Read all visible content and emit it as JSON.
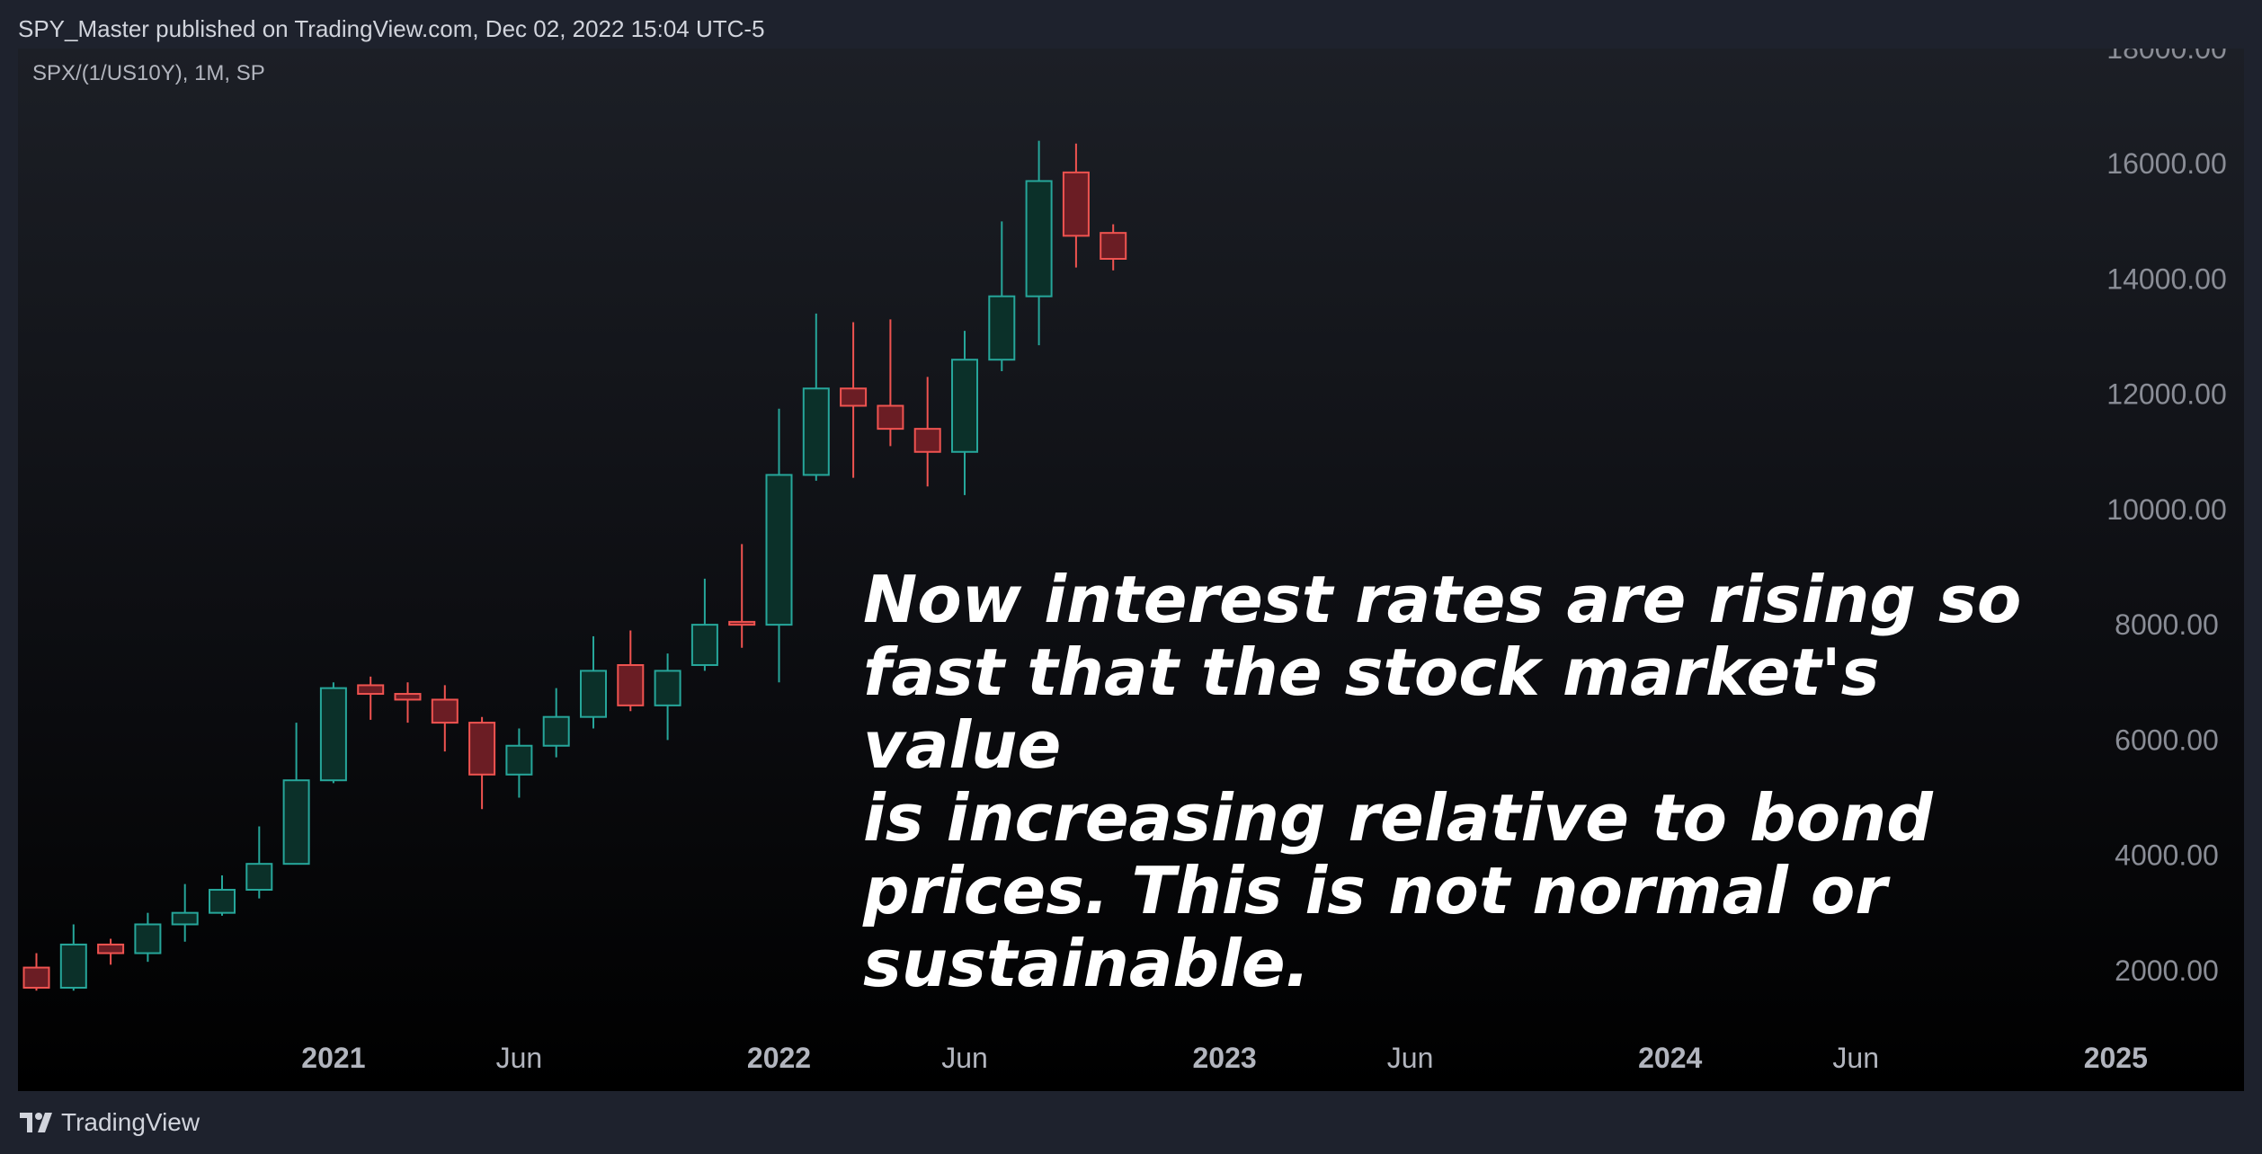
{
  "header": {
    "text": "SPY_Master published on TradingView.com, Dec 02, 2022 15:04 UTC-5"
  },
  "legend": {
    "text": "SPX/(1/US10Y), 1M, SP"
  },
  "annotation": {
    "text": "Now interest rates are rising so\nfast that the stock market's value\nis increasing relative to bond\nprices. This is not normal or\nsustainable."
  },
  "footer": {
    "brand": "TradingView",
    "logo_icon": "tradingview-logo-icon"
  },
  "colors": {
    "up": "#26a69a",
    "down": "#ef5350",
    "up_fill": "#0b3029",
    "down_fill": "#6b1d24",
    "background_top": "#1c1f26",
    "background_bottom": "#000000",
    "frame": "#1e222d"
  },
  "chart_data": {
    "type": "candlestick",
    "symbol": "SPX/(1/US10Y)",
    "interval": "1M",
    "ylim": [
      0,
      18000
    ],
    "y_ticks": [
      "18000.00",
      "16000.00",
      "14000.00",
      "12000.00",
      "10000.00",
      "8000.00",
      "6000.00",
      "4000.00",
      "2000.00"
    ],
    "x_ticks": [
      {
        "label": "2021",
        "date": "2021-01",
        "major": true
      },
      {
        "label": "Jun",
        "date": "2021-06",
        "major": false
      },
      {
        "label": "2022",
        "date": "2022-01",
        "major": true
      },
      {
        "label": "Jun",
        "date": "2022-06",
        "major": false
      },
      {
        "label": "2023",
        "date": "2023-01",
        "major": true
      },
      {
        "label": "Jun",
        "date": "2023-06",
        "major": false
      },
      {
        "label": "2024",
        "date": "2024-01",
        "major": true
      },
      {
        "label": "Jun",
        "date": "2024-06",
        "major": false
      },
      {
        "label": "2025",
        "date": "2025-01",
        "major": true
      }
    ],
    "grid": false,
    "candles": [
      {
        "date": "2020-05",
        "open": 2050,
        "high": 2300,
        "low": 1650,
        "close": 1700
      },
      {
        "date": "2020-06",
        "open": 1700,
        "high": 2800,
        "low": 1650,
        "close": 2450
      },
      {
        "date": "2020-07",
        "open": 2450,
        "high": 2550,
        "low": 2100,
        "close": 2300
      },
      {
        "date": "2020-08",
        "open": 2300,
        "high": 3000,
        "low": 2150,
        "close": 2800
      },
      {
        "date": "2020-09",
        "open": 2800,
        "high": 3500,
        "low": 2500,
        "close": 3000
      },
      {
        "date": "2020-10",
        "open": 3000,
        "high": 3650,
        "low": 2950,
        "close": 3400
      },
      {
        "date": "2020-11",
        "open": 3400,
        "high": 4500,
        "low": 3250,
        "close": 3850
      },
      {
        "date": "2020-12",
        "open": 3850,
        "high": 6300,
        "low": 3900,
        "close": 5300
      },
      {
        "date": "2021-01",
        "open": 5300,
        "high": 7000,
        "low": 5250,
        "close": 6900
      },
      {
        "date": "2021-02",
        "open": 6950,
        "high": 7100,
        "low": 6350,
        "close": 6800
      },
      {
        "date": "2021-03",
        "open": 6800,
        "high": 7000,
        "low": 6300,
        "close": 6700
      },
      {
        "date": "2021-04",
        "open": 6700,
        "high": 6950,
        "low": 5800,
        "close": 6300
      },
      {
        "date": "2021-05",
        "open": 6300,
        "high": 6400,
        "low": 4800,
        "close": 5400
      },
      {
        "date": "2021-06",
        "open": 5400,
        "high": 6200,
        "low": 5000,
        "close": 5900
      },
      {
        "date": "2021-07",
        "open": 5900,
        "high": 6900,
        "low": 5700,
        "close": 6400
      },
      {
        "date": "2021-08",
        "open": 6400,
        "high": 7800,
        "low": 6200,
        "close": 7200
      },
      {
        "date": "2021-09",
        "open": 7300,
        "high": 7900,
        "low": 6500,
        "close": 6600
      },
      {
        "date": "2021-10",
        "open": 6600,
        "high": 7500,
        "low": 6000,
        "close": 7200
      },
      {
        "date": "2021-11",
        "open": 7300,
        "high": 8800,
        "low": 7200,
        "close": 8000
      },
      {
        "date": "2021-12",
        "open": 8050,
        "high": 9400,
        "low": 7600,
        "close": 8000
      },
      {
        "date": "2022-01",
        "open": 8000,
        "high": 11750,
        "low": 7000,
        "close": 10600
      },
      {
        "date": "2022-02",
        "open": 10600,
        "high": 13400,
        "low": 10500,
        "close": 12100
      },
      {
        "date": "2022-03",
        "open": 12100,
        "high": 13250,
        "low": 10550,
        "close": 11800
      },
      {
        "date": "2022-04",
        "open": 11800,
        "high": 13300,
        "low": 11100,
        "close": 11400
      },
      {
        "date": "2022-05",
        "open": 11400,
        "high": 12300,
        "low": 10400,
        "close": 11000
      },
      {
        "date": "2022-06",
        "open": 11000,
        "high": 13100,
        "low": 10250,
        "close": 12600
      },
      {
        "date": "2022-07",
        "open": 12600,
        "high": 15000,
        "low": 12400,
        "close": 13700
      },
      {
        "date": "2022-08",
        "open": 13700,
        "high": 16400,
        "low": 12850,
        "close": 15700
      },
      {
        "date": "2022-09",
        "open": 15850,
        "high": 16350,
        "low": 14200,
        "close": 14750
      },
      {
        "date": "2022-10",
        "open": 14800,
        "high": 14950,
        "low": 14150,
        "close": 14350
      }
    ]
  }
}
